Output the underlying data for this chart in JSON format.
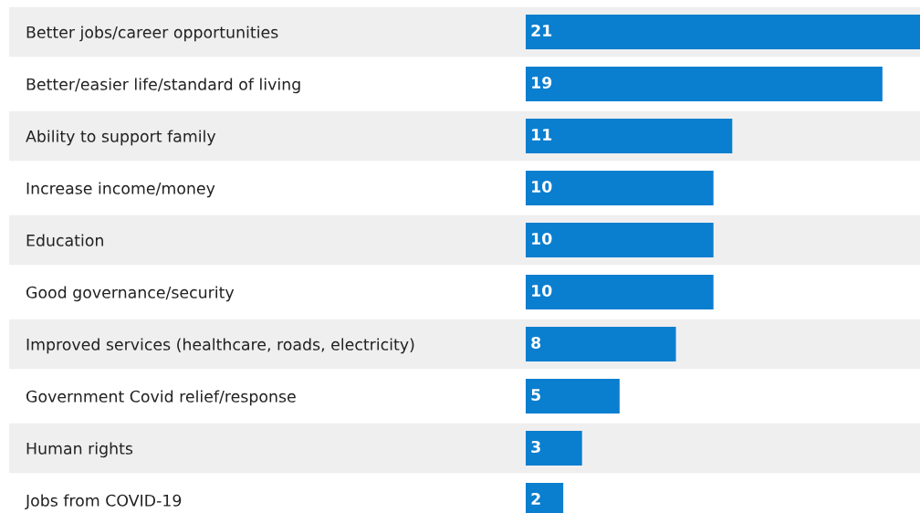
{
  "chart_data": {
    "type": "bar",
    "orientation": "horizontal",
    "categories": [
      "Better jobs/career opportunities",
      "Better/easier life/standard of living",
      "Ability to support family",
      "Increase income/money",
      "Education",
      "Good governance/security",
      "Improved services (healthcare, roads, electricity)",
      "Government Covid relief/response",
      "Human rights",
      "Jobs from COVID-19"
    ],
    "values": [
      21,
      19,
      11,
      10,
      10,
      10,
      8,
      5,
      3,
      2
    ],
    "color": "#0a7ecf",
    "data_labels": true,
    "grid": false,
    "legend": false,
    "tick_labels": "y"
  }
}
